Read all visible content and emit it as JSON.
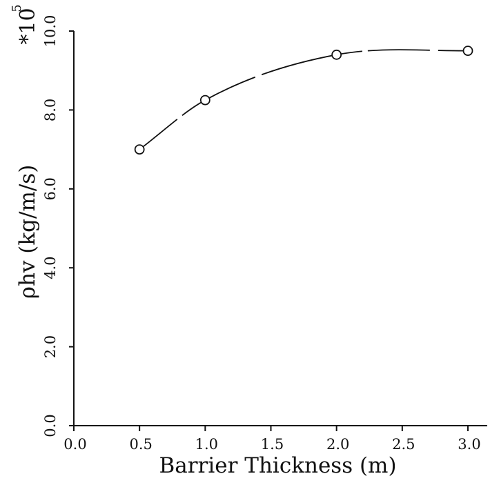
{
  "chart_data": {
    "type": "line",
    "xlabel": "Barrier Thickness (m)",
    "ylabel": "ρhv (kg/m/s)",
    "y_multiplier": "*10",
    "y_multiplier_exponent": "5",
    "xlim": [
      0.0,
      3.0
    ],
    "ylim": [
      0.0,
      10.0
    ],
    "x_ticks": [
      "0.0",
      "0.5",
      "1.0",
      "1.5",
      "2.0",
      "2.5",
      "3.0"
    ],
    "y_ticks": [
      "0.0",
      "2.0",
      "4.0",
      "6.0",
      "8.0",
      "10.0"
    ],
    "grid": false,
    "series": [
      {
        "x": [
          0.5,
          1.0,
          2.0,
          3.0
        ],
        "y": [
          7.0,
          8.25,
          9.4,
          9.5
        ],
        "marker": "open-circle",
        "line": "smooth",
        "color": "#111111"
      }
    ]
  }
}
